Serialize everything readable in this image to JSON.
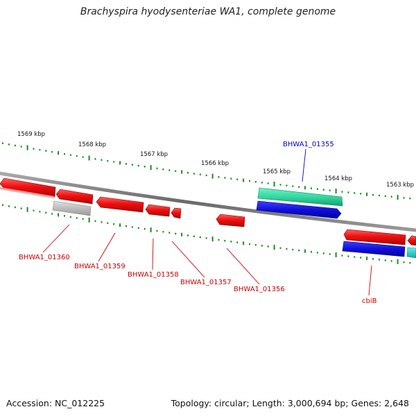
{
  "title": "Brachyspira hyodysenteriae WA1, complete genome",
  "footer": {
    "accession": "Accession: NC_012225",
    "summary": "Topology: circular; Length: 3,000,694 bp; Genes: 2,648"
  },
  "scale_labels": [
    "1569 kbp",
    "1568 kbp",
    "1567 kbp",
    "1566 kbp",
    "1565 kbp",
    "1564 kbp",
    "1563 kbp"
  ],
  "gene_labels": [
    {
      "id": "BHWA1_01355",
      "color": "#0000cc"
    },
    {
      "id": "BHWA1_01360",
      "color": "#cc0000"
    },
    {
      "id": "BHWA1_01359",
      "color": "#cc0000"
    },
    {
      "id": "BHWA1_01358",
      "color": "#cc0000"
    },
    {
      "id": "BHWA1_01357",
      "color": "#cc0000"
    },
    {
      "id": "BHWA1_01356",
      "color": "#cc0000"
    },
    {
      "id": "cbiB",
      "color": "#cc0000"
    }
  ],
  "colors": {
    "backbone": "#808080",
    "gene_red": "#ee1111",
    "gene_blue": "#1010dd",
    "gene_teal": "#33d9a0",
    "gene_cyan": "#22cccc",
    "gene_grey": "#bbbbbb",
    "tick": "#1a8a1a"
  }
}
